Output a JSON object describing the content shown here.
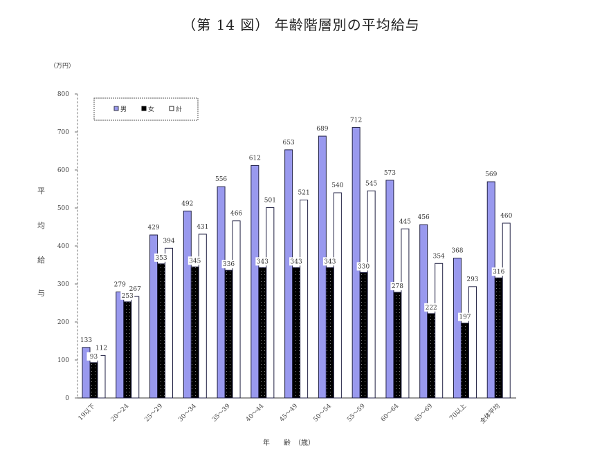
{
  "title": "（第 14 図） 年齢階層別の平均給与",
  "unit": "（万円）",
  "ylabel_chars": [
    "平",
    "均",
    "給",
    "与"
  ],
  "xlabel": "年　　齢　（歳）",
  "colors": {
    "male": "#9999ee",
    "female": "#000000",
    "total": "#ffffff",
    "border": "#222244"
  },
  "chart_data": {
    "type": "bar",
    "title": "（第 14 図） 年齢階層別の平均給与",
    "xlabel": "年齢（歳）",
    "ylabel": "平均給与",
    "unit": "万円",
    "ylim": [
      0,
      800
    ],
    "yticks": [
      0,
      100,
      200,
      300,
      400,
      500,
      600,
      700,
      800
    ],
    "grid": false,
    "legend_position": "top-left (inside plot, dashed box)",
    "categories": [
      "19以下",
      "20〜24",
      "25〜29",
      "30〜34",
      "35〜39",
      "40〜44",
      "45〜49",
      "50〜54",
      "55〜59",
      "60〜64",
      "65〜69",
      "70以上",
      "全体平均"
    ],
    "series": [
      {
        "name": "男",
        "values": [
          133,
          279,
          429,
          492,
          556,
          612,
          653,
          689,
          712,
          573,
          456,
          368,
          569
        ]
      },
      {
        "name": "女",
        "values": [
          93,
          253,
          353,
          345,
          336,
          343,
          343,
          343,
          330,
          278,
          222,
          197,
          316
        ]
      },
      {
        "name": "計",
        "values": [
          112,
          267,
          394,
          431,
          466,
          501,
          521,
          540,
          545,
          445,
          354,
          293,
          460
        ]
      }
    ]
  }
}
